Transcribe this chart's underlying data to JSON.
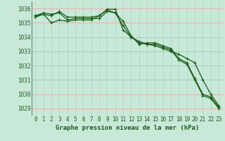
{
  "title": "Graphe pression niveau de la mer (hPa)",
  "bg_color": "#c8e8d8",
  "grid_color_h": "#e8a0a0",
  "grid_color_v": "#a8d8c0",
  "line_color": "#1a5c1a",
  "xlim": [
    -0.5,
    23.5
  ],
  "ylim": [
    1028.5,
    1036.5
  ],
  "yticks": [
    1029,
    1030,
    1031,
    1032,
    1033,
    1034,
    1035,
    1036
  ],
  "xticks": [
    0,
    1,
    2,
    3,
    4,
    5,
    6,
    7,
    8,
    9,
    10,
    11,
    12,
    13,
    14,
    15,
    16,
    17,
    18,
    19,
    20,
    21,
    22,
    23
  ],
  "series1": [
    1035.5,
    1035.7,
    1035.6,
    1035.7,
    1035.2,
    1035.3,
    1035.3,
    1035.3,
    1035.3,
    1035.8,
    1035.7,
    1035.1,
    1034.1,
    1033.5,
    1033.6,
    1033.6,
    1033.4,
    1033.2,
    1032.5,
    1032.2,
    1031.1,
    1030.0,
    1029.8,
    1029.1
  ],
  "series2": [
    1035.4,
    1035.6,
    1035.5,
    1035.8,
    1035.4,
    1035.4,
    1035.4,
    1035.4,
    1035.5,
    1035.9,
    1035.7,
    1034.8,
    1034.0,
    1033.6,
    1033.5,
    1033.5,
    1033.3,
    1033.1,
    1032.4,
    1032.1,
    1031.0,
    1029.9,
    1029.7,
    1029.0
  ],
  "series3": [
    1035.5,
    1035.6,
    1035.0,
    1035.2,
    1035.1,
    1035.2,
    1035.2,
    1035.2,
    1035.5,
    1035.95,
    1035.95,
    1034.5,
    1034.0,
    1033.7,
    1033.5,
    1033.4,
    1033.2,
    1033.0,
    1032.8,
    1032.5,
    1032.2,
    1031.0,
    1030.0,
    1029.2
  ],
  "font_color": "#1a5c1a",
  "tick_fontsize": 5.5,
  "xlabel_fontsize": 6.5
}
